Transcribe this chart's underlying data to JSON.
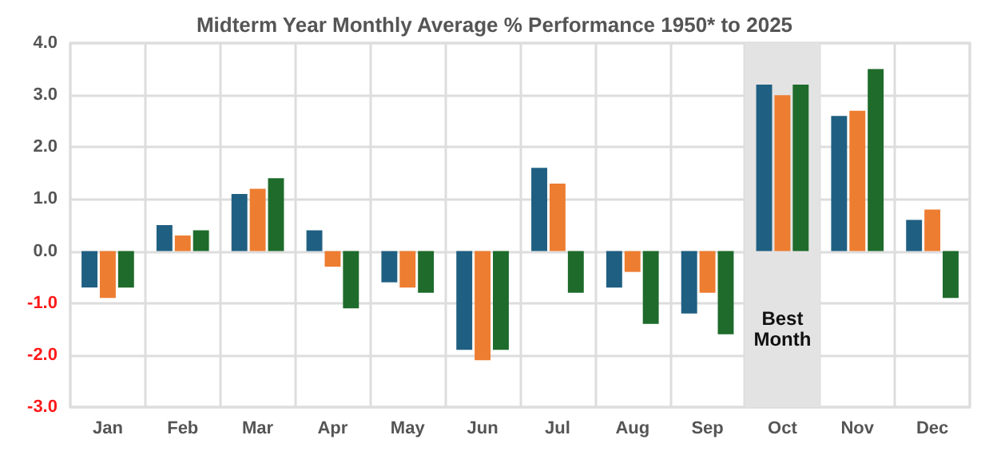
{
  "chart_data": {
    "type": "bar",
    "title": "Midterm Year Monthly Average % Performance 1950* to 2025",
    "categories": [
      "Jan",
      "Feb",
      "Mar",
      "Apr",
      "May",
      "Jun",
      "Jul",
      "Aug",
      "Sep",
      "Oct",
      "Nov",
      "Dec"
    ],
    "series": [
      {
        "color": "#1f5f82",
        "values": [
          -0.7,
          0.5,
          1.1,
          0.4,
          -0.6,
          -1.9,
          1.6,
          -0.7,
          -1.2,
          3.2,
          2.6,
          0.6
        ]
      },
      {
        "color": "#ed7d31",
        "values": [
          -0.9,
          0.3,
          1.2,
          -0.3,
          -0.7,
          -2.1,
          1.3,
          -0.4,
          -0.8,
          3.0,
          2.7,
          0.8
        ]
      },
      {
        "color": "#1e6b2b",
        "values": [
          -0.7,
          0.4,
          1.4,
          -1.1,
          -0.8,
          -1.9,
          -0.8,
          -1.4,
          -1.6,
          3.2,
          3.5,
          -0.9
        ]
      }
    ],
    "ylim": [
      -3,
      4
    ],
    "yticks": [
      {
        "value": -3,
        "label": "-3.0"
      },
      {
        "value": -2,
        "label": "-2.0"
      },
      {
        "value": -1,
        "label": "-1.0"
      },
      {
        "value": 0,
        "label": "0.0"
      },
      {
        "value": 1,
        "label": "1.0"
      },
      {
        "value": 2,
        "label": "2.0"
      },
      {
        "value": 3,
        "label": "3.0"
      },
      {
        "value": 4,
        "label": "4.0"
      }
    ],
    "grid": true,
    "bands": [
      {
        "axis": "x",
        "from": "Oct",
        "to": "Oct",
        "color": "#e3e3e3",
        "label": "Best\nMonth"
      }
    ]
  }
}
